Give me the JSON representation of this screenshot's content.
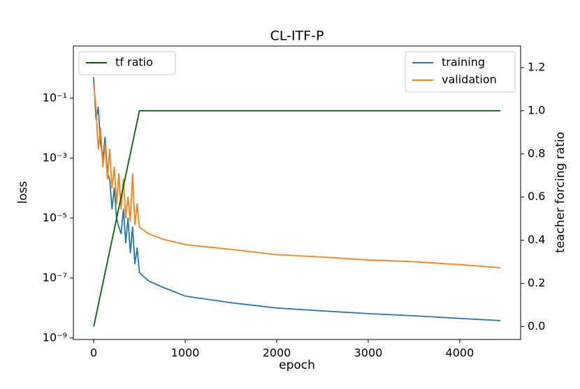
{
  "chart_data": {
    "type": "line",
    "title": "CL-ITF-P",
    "x_label": "epoch",
    "y_label": "loss",
    "y2_label": "teacher forcing ratio",
    "x": [
      0,
      25,
      50,
      75,
      100,
      125,
      150,
      175,
      200,
      225,
      250,
      275,
      300,
      325,
      350,
      375,
      400,
      425,
      450,
      475,
      500,
      600,
      750,
      1000,
      1500,
      2000,
      2500,
      3000,
      3500,
      4000,
      4443
    ],
    "series": [
      {
        "name": "training",
        "color": "#1f77b4",
        "axis": "y",
        "values": [
          0.5,
          0.02,
          0.05,
          0.003,
          0.001,
          0.005,
          0.0003,
          0.0002,
          2e-05,
          0.0001,
          1e-05,
          5e-06,
          3e-06,
          2e-05,
          1.5e-06,
          1e-05,
          7e-07,
          5e-06,
          3e-07,
          1e-06,
          1.5e-07,
          8e-08,
          5e-08,
          2.5e-08,
          1.5e-08,
          1e-08,
          8e-09,
          6.5e-09,
          5.5e-09,
          4.5e-09,
          3.8e-09
        ]
      },
      {
        "name": "validation",
        "color": "#ff7f0e",
        "axis": "y",
        "values": [
          0.3,
          0.05,
          0.002,
          0.01,
          0.0005,
          0.003,
          0.0002,
          0.002,
          0.0001,
          0.0005,
          3e-05,
          0.0003,
          2e-05,
          0.0002,
          1e-05,
          5e-05,
          8e-06,
          0.0003,
          6e-06,
          3e-05,
          5e-06,
          3e-06,
          2e-06,
          1.3e-06,
          9e-07,
          6e-07,
          5e-07,
          4e-07,
          3.5e-07,
          2.8e-07,
          2.2e-07
        ]
      },
      {
        "name": "tf ratio",
        "color": "#006400",
        "axis": "y2",
        "values": [
          0,
          0.05,
          0.1,
          0.15,
          0.2,
          0.25,
          0.3,
          0.35,
          0.4,
          0.45,
          0.5,
          0.55,
          0.6,
          0.65,
          0.7,
          0.75,
          0.8,
          0.85,
          0.9,
          0.95,
          1,
          1,
          1,
          1,
          1,
          1,
          1,
          1,
          1,
          1,
          1
        ]
      }
    ],
    "xlim": [
      -222,
      4665
    ],
    "xticks": [
      0,
      1000,
      2000,
      3000,
      4000
    ],
    "yscale": "log",
    "ylim": [
      8.9e-10,
      5.5
    ],
    "yticks": [
      {
        "value": 1e-09,
        "label": "10⁻⁹"
      },
      {
        "value": 1e-07,
        "label": "10⁻⁷"
      },
      {
        "value": 1e-05,
        "label": "10⁻⁵"
      },
      {
        "value": 0.001,
        "label": "10⁻³"
      },
      {
        "value": 0.1,
        "label": "10⁻¹"
      }
    ],
    "y2lim": [
      -0.06,
      1.3
    ],
    "y2ticks": [
      0.0,
      0.2,
      0.4,
      0.6,
      0.8,
      1.0,
      1.2
    ],
    "legend": "upper right",
    "legend2": "upper left"
  }
}
